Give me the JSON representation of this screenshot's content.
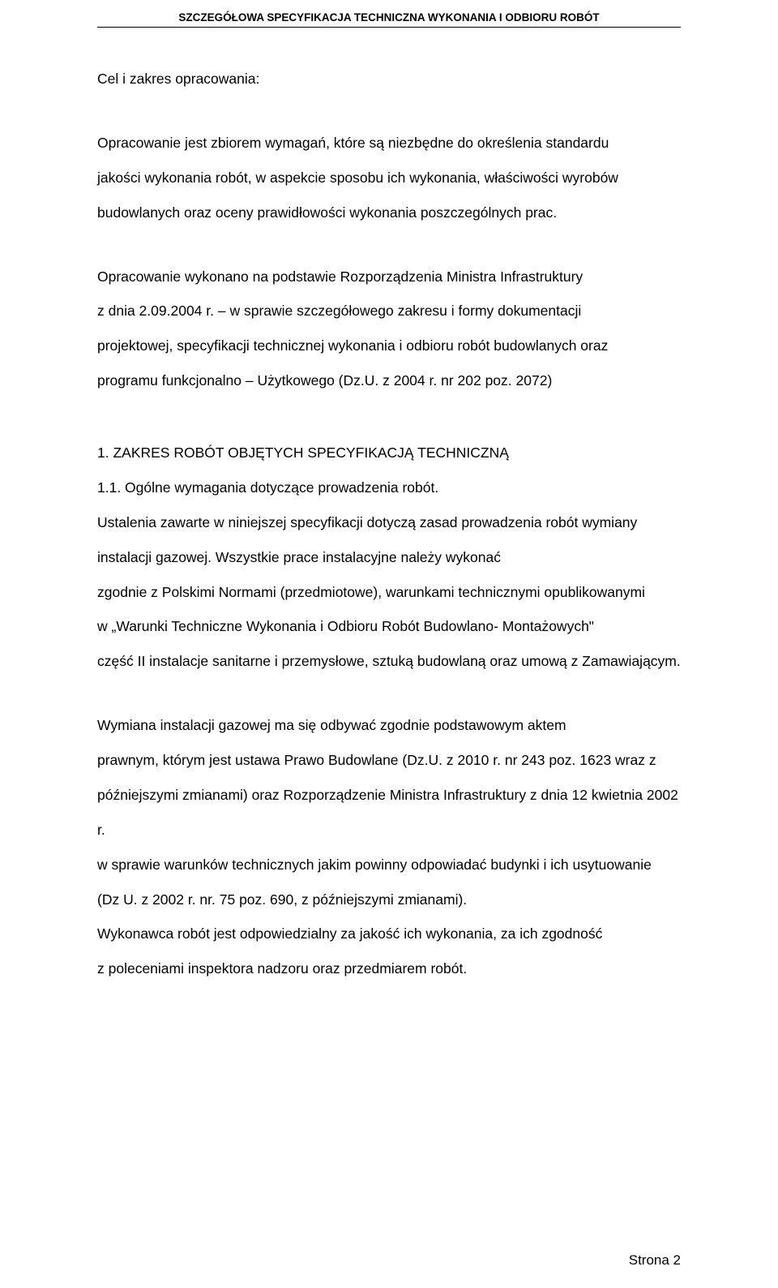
{
  "header": {
    "title": "SZCZEGÓŁOWA SPECYFIKACJA TECHNICZNA WYKONANIA I ODBIORU ROBÓT"
  },
  "content": {
    "intro_heading": "Cel i zakres opracowania:",
    "p1_l1": "Opracowanie jest zbiorem wymagań, które są niezbędne do określenia standardu",
    "p1_l2": "jakości wykonania robót, w aspekcie sposobu ich wykonania, właściwości wyrobów",
    "p1_l3": "budowlanych oraz oceny prawidłowości wykonania poszczególnych prac.",
    "p2_l1": "Opracowanie wykonano na podstawie Rozporządzenia Ministra Infrastruktury",
    "p2_l2": "z dnia 2.09.2004 r. – w sprawie szczegółowego zakresu i formy dokumentacji",
    "p2_l3": "projektowej, specyfikacji technicznej wykonania i odbioru robót budowlanych oraz",
    "p2_l4": "programu funkcjonalno – Użytkowego (Dz.U. z 2004 r. nr 202 poz. 2072)",
    "sec1_title": "1. ZAKRES ROBÓT OBJĘTYCH SPECYFIKACJĄ TECHNICZNĄ",
    "sec11_title": "1.1. Ogólne wymagania dotyczące prowadzenia robót.",
    "p3_l1": "Ustalenia zawarte w niniejszej specyfikacji dotyczą zasad prowadzenia robót wymiany",
    "p3_l2": "instalacji gazowej. Wszystkie prace instalacyjne należy wykonać",
    "p3_l3": "zgodnie z Polskimi Normami (przedmiotowe), warunkami technicznymi opublikowanymi",
    "p3_l4": "w „Warunki Techniczne Wykonania i Odbioru Robót Budowlano- Montażowych\"",
    "p3_l5": "część II instalacje sanitarne i przemysłowe, sztuką budowlaną oraz umową z Zamawiającym.",
    "p4_l1": "Wymiana instalacji gazowej ma się odbywać zgodnie podstawowym aktem",
    "p4_l2": "prawnym, którym jest ustawa Prawo Budowlane (Dz.U. z 2010 r. nr 243 poz. 1623 wraz z",
    "p4_l3": "późniejszymi zmianami) oraz Rozporządzenie Ministra Infrastruktury z dnia 12 kwietnia 2002 r.",
    "p4_l4": "w sprawie warunków technicznych jakim powinny odpowiadać budynki i ich usytuowanie",
    "p4_l5": "(Dz U. z 2002 r. nr. 75 poz. 690, z późniejszymi zmianami).",
    "p4_l6": "Wykonawca robót jest odpowiedzialny za jakość ich wykonania, za ich zgodność",
    "p4_l7": "z poleceniami inspektora nadzoru oraz przedmiarem robót."
  },
  "footer": {
    "page_label": "Strona 2"
  }
}
